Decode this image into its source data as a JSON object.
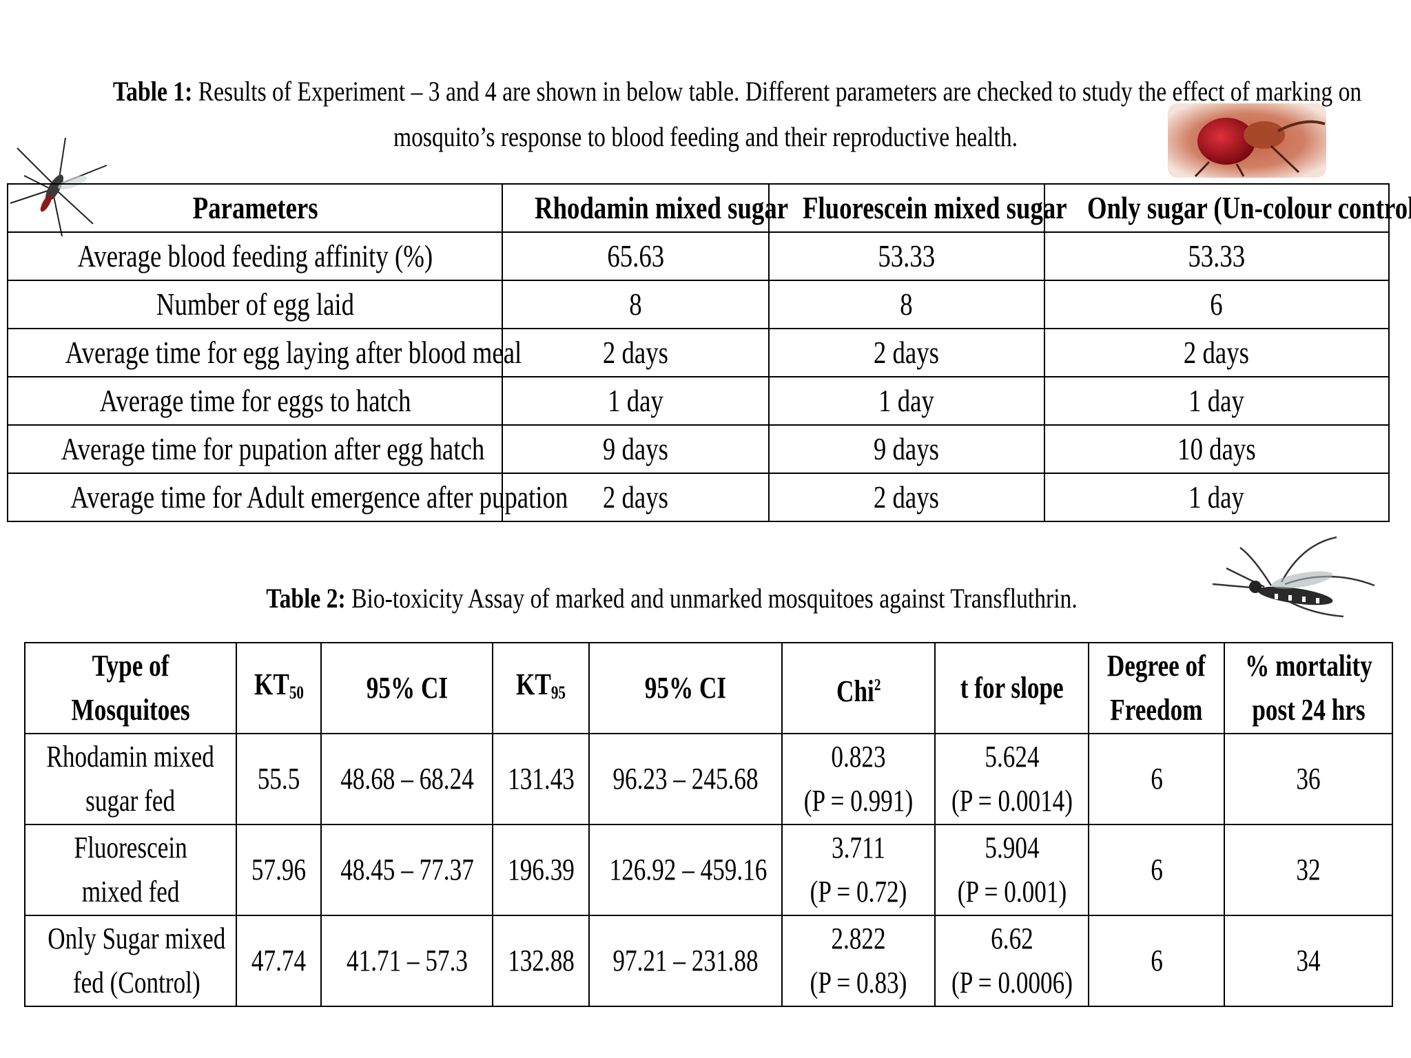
{
  "table1": {
    "caption_label": "Table 1:",
    "caption_text_line1": "Results of Experiment – 3 and 4 are shown in below table. Different parameters are checked to study the effect of marking on",
    "caption_text_line2": "mosquito’s response to blood feeding and their reproductive health.",
    "headers": [
      "Parameters",
      "Rhodamin mixed sugar",
      "Fluorescein mixed sugar",
      "Only sugar (Un-colour control)"
    ],
    "rows": [
      [
        "Average blood feeding affinity (%)",
        "65.63",
        "53.33",
        "53.33"
      ],
      [
        "Number of egg laid",
        "8",
        "8",
        "6"
      ],
      [
        "Average time for egg laying after blood meal",
        "2 days",
        "2 days",
        "2 days"
      ],
      [
        "Average time for eggs to hatch",
        "1 day",
        "1 day",
        "1 day"
      ],
      [
        "Average time for pupation after egg hatch",
        "9 days",
        "9 days",
        "10 days"
      ],
      [
        "Average time for Adult emergence after pupation",
        "2 days",
        "2 days",
        "1 day"
      ]
    ]
  },
  "table2": {
    "caption_label": "Table 2:",
    "caption_text": "Bio-toxicity Assay of marked and unmarked mosquitoes against Transfluthrin.",
    "headers": {
      "type_line1": "Type of",
      "type_line2": "Mosquitoes",
      "kt50_main": "KT",
      "kt50_sub": "50",
      "ci1": "95% CI",
      "kt95_main": "KT",
      "kt95_sub": "95",
      "ci2": "95% CI",
      "chi_main": "Chi",
      "chi_sup": "2",
      "slope": "t for slope",
      "df_line1": "Degree of",
      "df_line2": "Freedom",
      "mort_line1": "% mortality",
      "mort_line2": "post 24 hrs"
    },
    "rows": [
      {
        "type_line1": "Rhodamin mixed",
        "type_line2": "sugar fed",
        "kt50": "55.5",
        "ci1": "48.68 – 68.24",
        "kt95": "131.43",
        "ci2": "96.23 – 245.68",
        "chi": "0.823",
        "chi_p": "(P = 0.991)",
        "slope": "5.624",
        "slope_p": "(P = 0.0014)",
        "df": "6",
        "mortality": "36"
      },
      {
        "type_line1": "Fluorescein",
        "type_line2": "mixed fed",
        "kt50": "57.96",
        "ci1": "48.45 – 77.37",
        "kt95": "196.39",
        "ci2": "126.92 – 459.16",
        "chi": "3.711",
        "chi_p": "(P = 0.72)",
        "slope": "5.904",
        "slope_p": "(P = 0.001)",
        "df": "6",
        "mortality": "32"
      },
      {
        "type_line1": "Only Sugar mixed",
        "type_line2": "fed (Control)",
        "kt50": "47.74",
        "ci1": "41.71 – 57.3",
        "kt95": "132.88",
        "ci2": "97.21 – 231.88",
        "chi": "2.822",
        "chi_p": "(P = 0.83)",
        "slope": "6.62",
        "slope_p": "(P = 0.0006)",
        "df": "6",
        "mortality": "34"
      }
    ]
  },
  "images": {
    "mosquito_top_left": "mosquito-icon",
    "blood_fed_mosquito": "blood-fed-mosquito-icon",
    "mosquito_right": "mosquito-icon"
  }
}
